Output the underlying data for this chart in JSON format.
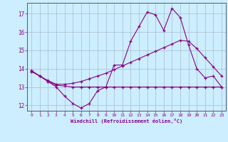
{
  "x": [
    0,
    1,
    2,
    3,
    4,
    5,
    6,
    7,
    8,
    9,
    10,
    11,
    12,
    13,
    14,
    15,
    16,
    17,
    18,
    19,
    20,
    21,
    22,
    23
  ],
  "line_wavy": [
    13.9,
    13.6,
    13.3,
    13.0,
    12.5,
    12.1,
    11.85,
    12.1,
    12.8,
    13.0,
    14.2,
    14.2,
    15.5,
    16.3,
    17.1,
    16.95,
    16.1,
    17.3,
    16.8,
    15.3,
    14.0,
    13.5,
    13.6,
    13.0
  ],
  "line_flat": [
    13.85,
    13.6,
    13.3,
    13.1,
    13.05,
    13.0,
    13.0,
    13.0,
    13.0,
    13.0,
    13.0,
    13.0,
    13.0,
    13.0,
    13.0,
    13.0,
    13.0,
    13.0,
    13.0,
    13.0,
    13.0,
    13.0,
    13.0,
    13.0
  ],
  "line_trend": [
    13.85,
    13.6,
    13.35,
    13.15,
    13.15,
    13.2,
    13.3,
    13.45,
    13.6,
    13.75,
    13.95,
    14.15,
    14.35,
    14.55,
    14.75,
    14.95,
    15.15,
    15.35,
    15.55,
    15.5,
    15.1,
    14.6,
    14.1,
    13.6
  ],
  "color": "#880088",
  "bg_color": "#cceeff",
  "grid_color": "#aabbcc",
  "xlabel": "Windchill (Refroidissement éolien,°C)",
  "xlim": [
    -0.5,
    23.5
  ],
  "ylim": [
    11.7,
    17.6
  ],
  "yticks": [
    12,
    13,
    14,
    15,
    16,
    17
  ],
  "xticks": [
    0,
    1,
    2,
    3,
    4,
    5,
    6,
    7,
    8,
    9,
    10,
    11,
    12,
    13,
    14,
    15,
    16,
    17,
    18,
    19,
    20,
    21,
    22,
    23
  ]
}
